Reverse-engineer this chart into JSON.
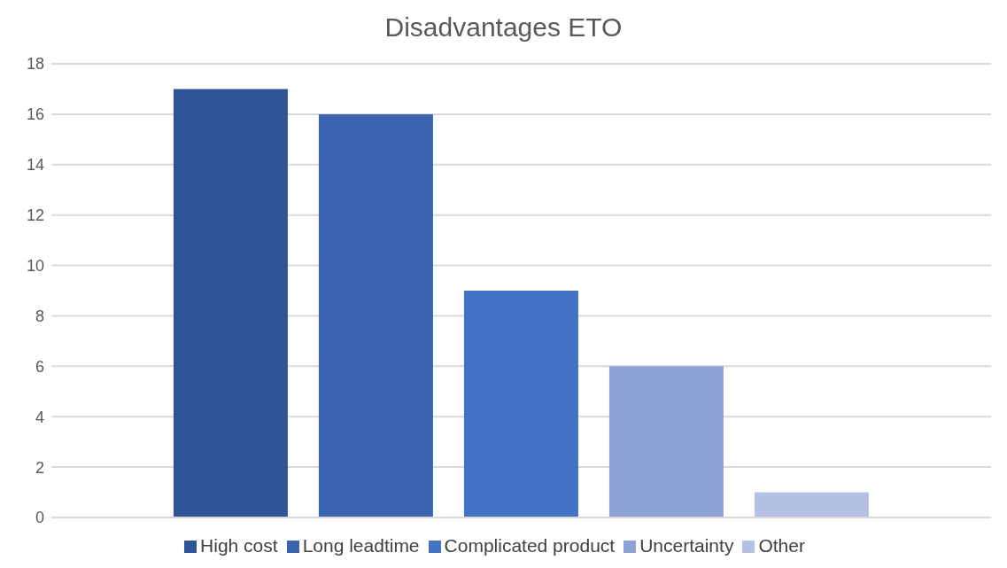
{
  "chart_data": {
    "type": "bar",
    "title": "Disadvantages ETO",
    "categories": [
      null
    ],
    "series": [
      {
        "name": "High cost",
        "color": "#2f5597",
        "values": [
          17
        ]
      },
      {
        "name": "Long leadtime",
        "color": "#3a63ad",
        "values": [
          16
        ]
      },
      {
        "name": "Complicated product",
        "color": "#4472c4",
        "values": [
          9
        ]
      },
      {
        "name": "Uncertainty",
        "color": "#8ea2d6",
        "values": [
          6
        ]
      },
      {
        "name": "Other",
        "color": "#b4c1e4",
        "values": [
          1
        ]
      }
    ],
    "ylim": [
      0,
      18
    ],
    "yticks": [
      0,
      2,
      4,
      6,
      8,
      10,
      12,
      14,
      16,
      18
    ],
    "grid": "y",
    "legend": "bottom"
  }
}
